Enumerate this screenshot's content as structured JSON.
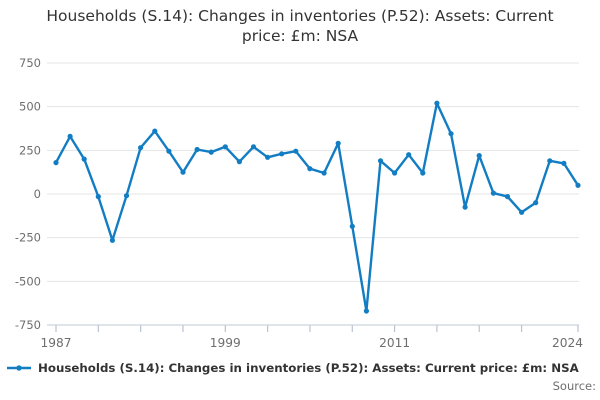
{
  "title": "Households (S.14): Changes in inventories (P.52): Assets: Current price: £m: NSA",
  "legend": {
    "label": "Households (S.14): Changes in inventories (P.52): Assets: Current price: £m: NSA",
    "marker": "line-with-dot"
  },
  "source_label": "Source:",
  "colors": {
    "line": "#127dc3",
    "grid": "#e4e4e4",
    "axis_line": "#ccd3dc",
    "tick": "#b9c2d0",
    "axis_label": "#6e6e6e",
    "title_text": "#333333"
  },
  "chart_data": {
    "type": "line",
    "title": "Households (S.14): Changes in inventories (P.52): Assets: Current price: £m: NSA",
    "xlabel": "",
    "ylabel": "",
    "x": [
      1987,
      1988,
      1989,
      1990,
      1991,
      1992,
      1993,
      1994,
      1995,
      1996,
      1997,
      1998,
      1999,
      2000,
      2001,
      2002,
      2003,
      2004,
      2005,
      2006,
      2007,
      2008,
      2009,
      2010,
      2011,
      2012,
      2013,
      2014,
      2015,
      2016,
      2017,
      2018,
      2019,
      2020,
      2021,
      2022,
      2023,
      2024
    ],
    "series": [
      {
        "name": "Households (S.14): Changes in inventories (P.52): Assets: Current price: £m: NSA",
        "values": [
          180,
          330,
          200,
          -15,
          -265,
          -10,
          265,
          360,
          245,
          125,
          255,
          240,
          270,
          185,
          270,
          210,
          230,
          245,
          145,
          120,
          290,
          -185,
          -670,
          190,
          120,
          225,
          120,
          520,
          345,
          -75,
          220,
          5,
          -15,
          -105,
          -50,
          190,
          175,
          50
        ]
      }
    ],
    "ylim": [
      -750,
      750
    ],
    "yticks": [
      750,
      500,
      250,
      0,
      -250,
      -500,
      -750
    ],
    "xticks_minor": [
      1987,
      1990,
      1993,
      1996,
      1999,
      2002,
      2005,
      2008,
      2011,
      2014,
      2017,
      2020,
      2024
    ],
    "xtick_labels": [
      1987,
      1999,
      2011,
      2024
    ],
    "grid": true,
    "legend_position": "bottom-left"
  }
}
